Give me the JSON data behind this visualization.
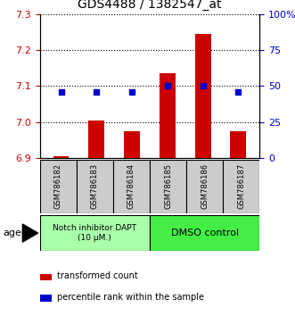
{
  "title": "GDS4488 / 1382547_at",
  "samples": [
    "GSM786182",
    "GSM786183",
    "GSM786184",
    "GSM786185",
    "GSM786186",
    "GSM786187"
  ],
  "red_values": [
    6.905,
    7.005,
    6.975,
    7.135,
    7.245,
    6.975
  ],
  "blue_pct": [
    46,
    46,
    46,
    50,
    50,
    46
  ],
  "ylim": [
    6.9,
    7.3
  ],
  "yticks_left": [
    6.9,
    7.0,
    7.1,
    7.2,
    7.3
  ],
  "yticks_right": [
    0,
    25,
    50,
    75,
    100
  ],
  "ytick_right_labels": [
    "0",
    "25",
    "50",
    "75",
    "100%"
  ],
  "group1_label": "Notch inhibitor DAPT\n(10 μM.)",
  "group2_label": "DMSO control",
  "group1_color": "#AAFFAA",
  "group2_color": "#44EE44",
  "bar_color": "#CC0000",
  "dot_color": "#0000CC",
  "sample_box_color": "#CCCCCC",
  "legend_bar_label": "transformed count",
  "legend_dot_label": "percentile rank within the sample",
  "agent_label": "agent",
  "ylabel_left_color": "#CC0000",
  "ylabel_right_color": "#0000CC"
}
